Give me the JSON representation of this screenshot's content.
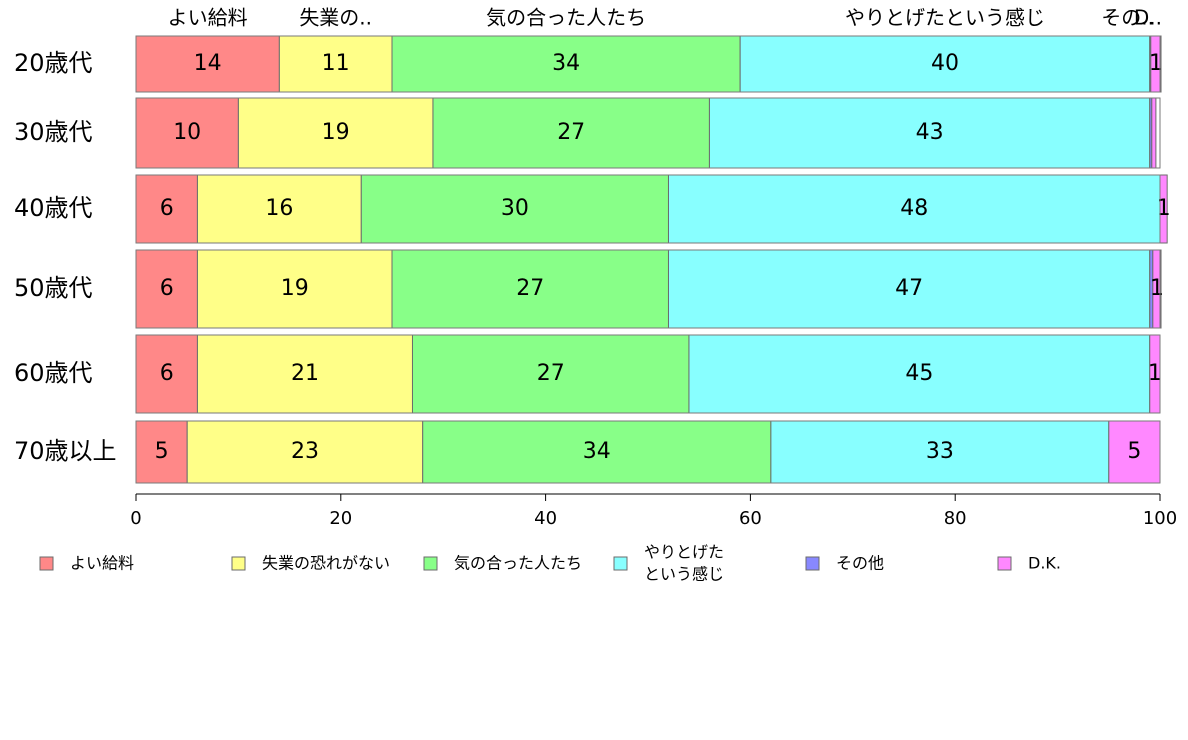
{
  "chart_data": {
    "type": "bar",
    "orientation": "horizontal",
    "stacked": true,
    "categories": [
      "20歳代",
      "30歳代",
      "40歳代",
      "50歳代",
      "60歳代",
      "70歳以上"
    ],
    "series": [
      {
        "name": "よい給料",
        "color": "#ff8888",
        "values": [
          14,
          10,
          6,
          6,
          6,
          5
        ],
        "labels": [
          "14",
          "10",
          "6",
          "6",
          "6",
          "5"
        ]
      },
      {
        "name": "失業の恐れがない",
        "color": "#ffff88",
        "values": [
          11,
          19,
          16,
          19,
          21,
          23
        ],
        "labels": [
          "11",
          "19",
          "16",
          "19",
          "21",
          "23"
        ]
      },
      {
        "name": "気の合った人たち",
        "color": "#88ff88",
        "values": [
          34,
          27,
          30,
          27,
          27,
          34
        ],
        "labels": [
          "34",
          "27",
          "30",
          "27",
          "27",
          "34"
        ]
      },
      {
        "name": "やりとげたという感じ",
        "color": "#88ffff",
        "values": [
          40,
          43,
          48,
          47,
          45,
          33
        ],
        "labels": [
          "40",
          "43",
          "48",
          "47",
          "45",
          "33"
        ]
      },
      {
        "name": "その他",
        "color": "#8888ff",
        "values": [
          0.1,
          0.2,
          0,
          0.3,
          0,
          0
        ],
        "labels": [
          "",
          "",
          "",
          "",
          "",
          ""
        ]
      },
      {
        "name": "D.K.",
        "color": "#ff88ff",
        "values": [
          1,
          0.4,
          0.7,
          0.8,
          1,
          5
        ],
        "labels": [
          "1",
          "",
          "1",
          "1",
          "1",
          "5"
        ]
      }
    ],
    "top_labels": [
      "よい給料",
      "失業の..",
      "気の合った人たち",
      "やりとげたという感じ",
      "その..",
      "D.."
    ],
    "xlim": [
      0,
      100
    ],
    "xticks": [
      "0",
      "20",
      "40",
      "60",
      "80",
      "100"
    ],
    "legend": {
      "position": "bottom",
      "items": [
        "よい給料",
        "失業の恐れがない",
        "気の合った人たち",
        "やりとげた\nという感じ",
        "その他",
        "D.K."
      ]
    },
    "grid": false
  }
}
